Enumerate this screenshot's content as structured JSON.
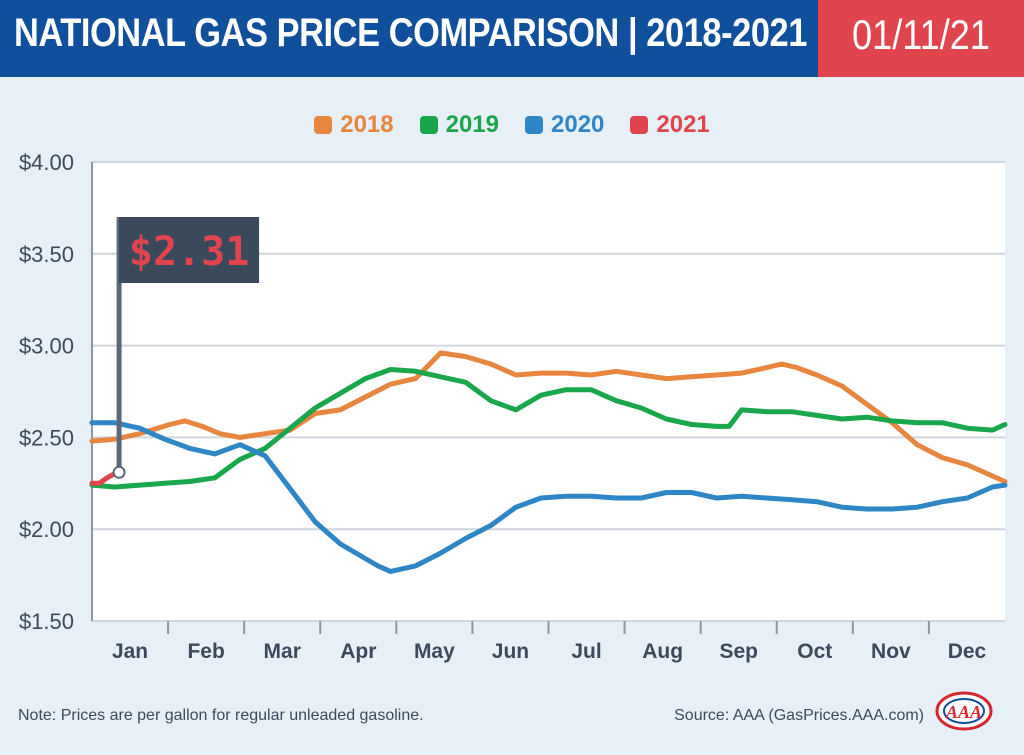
{
  "header": {
    "title": "NATIONAL GAS PRICE COMPARISON | 2018-2021",
    "date": "01/11/21"
  },
  "colors": {
    "header_bg": "#0f4f9c",
    "date_bg": "#e0454d",
    "page_bg": "#e8f0f7",
    "plot_bg": "#ffffff",
    "s2018": "#e8853f",
    "s2019": "#1aa64a",
    "s2020": "#2f86c6",
    "s2021": "#e0454d",
    "flag_bg": "#3a4a5c"
  },
  "price_flag": {
    "label": "$2.31",
    "value": 2.31
  },
  "footer": {
    "note": "Note: Prices are per gallon for regular unleaded gasoline.",
    "source": "Source: AAA (GasPrices.AAA.com)",
    "logo_text": "AAA"
  },
  "chart_data": {
    "type": "line",
    "x_unit": "day of year",
    "xlim": [
      1,
      365
    ],
    "ylim": [
      1.5,
      4.0
    ],
    "yticks": [
      1.5,
      2.0,
      2.5,
      3.0,
      3.5,
      4.0
    ],
    "ytick_labels": [
      "$1.50",
      "$2.00",
      "$2.50",
      "$3.00",
      "$3.50",
      "$4.00"
    ],
    "months": [
      "Jan",
      "Feb",
      "Mar",
      "Apr",
      "May",
      "Jun",
      "Jul",
      "Aug",
      "Sep",
      "Oct",
      "Nov",
      "Dec"
    ],
    "grid": true,
    "legend_position": "top-center",
    "series": [
      {
        "name": "2018",
        "color_key": "s2018",
        "x": [
          1,
          10,
          20,
          32,
          38,
          45,
          52,
          60,
          70,
          80,
          90,
          100,
          110,
          120,
          130,
          140,
          150,
          160,
          170,
          180,
          190,
          200,
          210,
          220,
          230,
          240,
          250,
          260,
          270,
          276,
          282,
          290,
          300,
          310,
          320,
          330,
          340,
          350,
          360,
          365
        ],
        "values": [
          2.48,
          2.49,
          2.52,
          2.57,
          2.59,
          2.56,
          2.52,
          2.5,
          2.52,
          2.54,
          2.63,
          2.65,
          2.72,
          2.79,
          2.82,
          2.96,
          2.94,
          2.9,
          2.84,
          2.85,
          2.85,
          2.84,
          2.86,
          2.84,
          2.82,
          2.83,
          2.84,
          2.85,
          2.88,
          2.9,
          2.88,
          2.84,
          2.78,
          2.68,
          2.58,
          2.46,
          2.39,
          2.35,
          2.29,
          2.26
        ]
      },
      {
        "name": "2019",
        "color_key": "s2019",
        "x": [
          1,
          10,
          20,
          30,
          40,
          50,
          60,
          70,
          80,
          90,
          100,
          110,
          120,
          130,
          140,
          150,
          160,
          170,
          180,
          190,
          200,
          210,
          220,
          230,
          240,
          250,
          255,
          260,
          270,
          280,
          290,
          300,
          310,
          320,
          330,
          340,
          350,
          360,
          365
        ],
        "values": [
          2.24,
          2.23,
          2.24,
          2.25,
          2.26,
          2.28,
          2.38,
          2.44,
          2.55,
          2.66,
          2.74,
          2.82,
          2.87,
          2.86,
          2.83,
          2.8,
          2.7,
          2.65,
          2.73,
          2.76,
          2.76,
          2.7,
          2.66,
          2.6,
          2.57,
          2.56,
          2.56,
          2.65,
          2.64,
          2.64,
          2.62,
          2.6,
          2.61,
          2.59,
          2.58,
          2.58,
          2.55,
          2.54,
          2.57
        ]
      },
      {
        "name": "2020",
        "color_key": "s2020",
        "x": [
          1,
          10,
          20,
          30,
          40,
          50,
          60,
          70,
          80,
          90,
          100,
          110,
          115,
          120,
          130,
          140,
          150,
          160,
          170,
          180,
          190,
          200,
          210,
          220,
          230,
          240,
          250,
          260,
          270,
          280,
          290,
          300,
          310,
          320,
          330,
          340,
          350,
          360,
          365
        ],
        "values": [
          2.58,
          2.58,
          2.55,
          2.49,
          2.44,
          2.41,
          2.46,
          2.4,
          2.22,
          2.04,
          1.92,
          1.84,
          1.8,
          1.77,
          1.8,
          1.87,
          1.95,
          2.02,
          2.12,
          2.17,
          2.18,
          2.18,
          2.17,
          2.17,
          2.2,
          2.2,
          2.17,
          2.18,
          2.17,
          2.16,
          2.15,
          2.12,
          2.11,
          2.11,
          2.12,
          2.15,
          2.17,
          2.23,
          2.24
        ]
      },
      {
        "name": "2021",
        "color_key": "s2021",
        "x": [
          1,
          4,
          7,
          11
        ],
        "values": [
          2.25,
          2.25,
          2.28,
          2.31
        ]
      }
    ]
  }
}
